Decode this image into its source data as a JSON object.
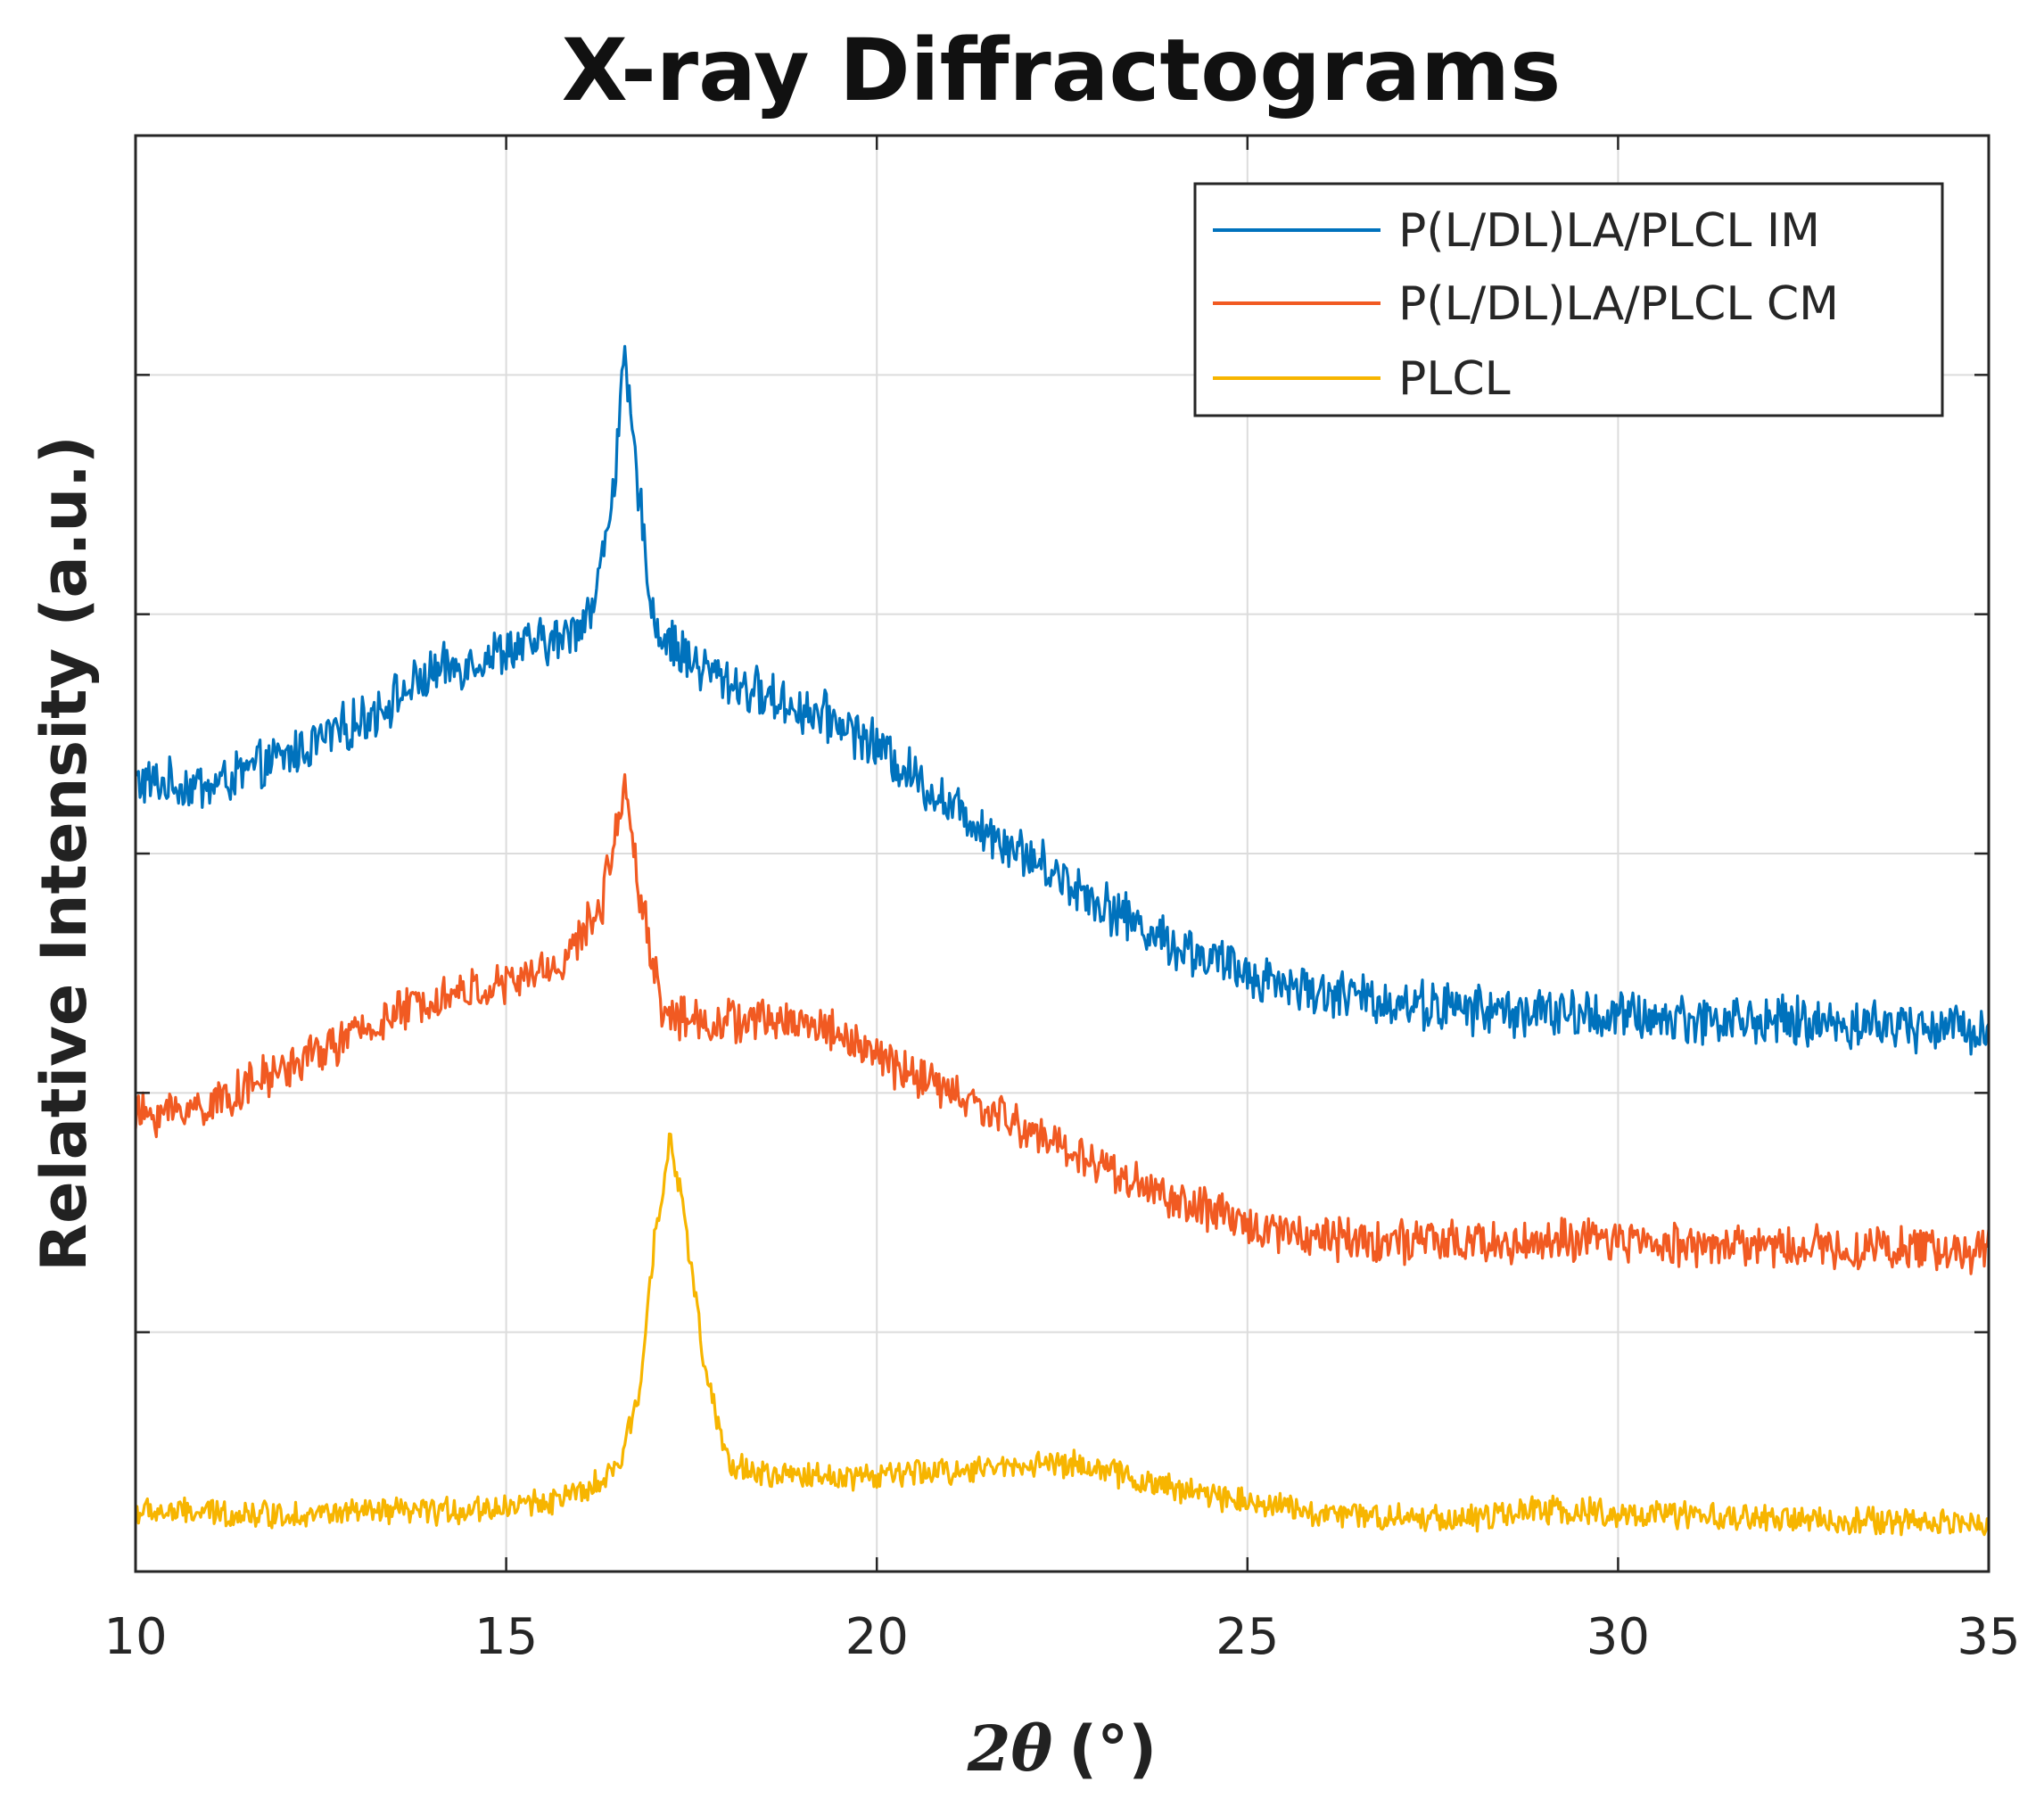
{
  "chart_data": {
    "type": "line",
    "title": "X-ray Diffractograms",
    "xlabel_symbol": "2θ",
    "xlabel_unit": "(°)",
    "ylabel": "Relative Intensity (a.u.)",
    "xlim": [
      10,
      35
    ],
    "ylim": [
      0,
      6
    ],
    "xticks": [
      10,
      15,
      20,
      25,
      30,
      35
    ],
    "xtick_labels": [
      "10",
      "15",
      "20",
      "25",
      "30",
      "35"
    ],
    "yticks": [
      1,
      2,
      3,
      4,
      5
    ],
    "ytick_labels": [
      "",
      "",
      "",
      "",
      ""
    ],
    "grid": true,
    "legend_position": "top-right",
    "series": [
      {
        "name": "P(L/DL)LA/PLCL IM",
        "color": "#0072BD",
        "noise": 0.09,
        "points": [
          [
            10,
            3.3
          ],
          [
            11,
            3.28
          ],
          [
            12,
            3.4
          ],
          [
            13,
            3.55
          ],
          [
            14,
            3.75
          ],
          [
            15,
            3.85
          ],
          [
            15.8,
            3.9
          ],
          [
            16.2,
            4.05
          ],
          [
            16.45,
            4.55
          ],
          [
            16.6,
            5.05
          ],
          [
            16.75,
            4.6
          ],
          [
            17.0,
            3.95
          ],
          [
            17.5,
            3.8
          ],
          [
            18,
            3.72
          ],
          [
            19,
            3.6
          ],
          [
            19.5,
            3.55
          ],
          [
            20,
            3.45
          ],
          [
            21,
            3.2
          ],
          [
            22,
            3.0
          ],
          [
            23,
            2.8
          ],
          [
            24,
            2.62
          ],
          [
            25,
            2.5
          ],
          [
            26,
            2.42
          ],
          [
            27,
            2.38
          ],
          [
            28,
            2.35
          ],
          [
            30,
            2.32
          ],
          [
            32,
            2.3
          ],
          [
            34,
            2.28
          ],
          [
            35,
            2.27
          ]
        ]
      },
      {
        "name": "P(L/DL)LA/PLCL CM",
        "color": "#F15A22",
        "noise": 0.08,
        "points": [
          [
            10,
            1.9
          ],
          [
            11,
            1.95
          ],
          [
            12,
            2.1
          ],
          [
            13,
            2.25
          ],
          [
            14,
            2.4
          ],
          [
            15,
            2.45
          ],
          [
            15.8,
            2.55
          ],
          [
            16.3,
            2.8
          ],
          [
            16.6,
            3.3
          ],
          [
            16.8,
            2.85
          ],
          [
            17.1,
            2.35
          ],
          [
            17.5,
            2.3
          ],
          [
            18,
            2.3
          ],
          [
            19,
            2.3
          ],
          [
            19.5,
            2.25
          ],
          [
            20,
            2.15
          ],
          [
            21,
            2.0
          ],
          [
            22,
            1.85
          ],
          [
            23,
            1.7
          ],
          [
            24,
            1.55
          ],
          [
            25,
            1.45
          ],
          [
            26,
            1.4
          ],
          [
            27,
            1.38
          ],
          [
            28,
            1.37
          ],
          [
            30,
            1.38
          ],
          [
            32,
            1.36
          ],
          [
            34,
            1.35
          ],
          [
            35,
            1.34
          ]
        ]
      },
      {
        "name": "PLCL",
        "color": "#F7B500",
        "noise": 0.05,
        "points": [
          [
            10,
            0.25
          ],
          [
            12,
            0.24
          ],
          [
            14,
            0.25
          ],
          [
            15,
            0.27
          ],
          [
            16,
            0.32
          ],
          [
            16.5,
            0.42
          ],
          [
            16.8,
            0.75
          ],
          [
            17.0,
            1.4
          ],
          [
            17.2,
            1.8
          ],
          [
            17.4,
            1.5
          ],
          [
            17.7,
            0.8
          ],
          [
            18,
            0.45
          ],
          [
            18.5,
            0.4
          ],
          [
            19,
            0.4
          ],
          [
            20,
            0.4
          ],
          [
            21,
            0.42
          ],
          [
            22,
            0.45
          ],
          [
            22.8,
            0.45
          ],
          [
            23.5,
            0.38
          ],
          [
            24.5,
            0.32
          ],
          [
            25,
            0.3
          ],
          [
            26,
            0.24
          ],
          [
            27,
            0.23
          ],
          [
            28,
            0.22
          ],
          [
            29,
            0.26
          ],
          [
            30,
            0.24
          ],
          [
            31,
            0.23
          ],
          [
            32,
            0.22
          ],
          [
            33,
            0.21
          ],
          [
            34,
            0.21
          ],
          [
            35,
            0.2
          ]
        ]
      }
    ]
  }
}
